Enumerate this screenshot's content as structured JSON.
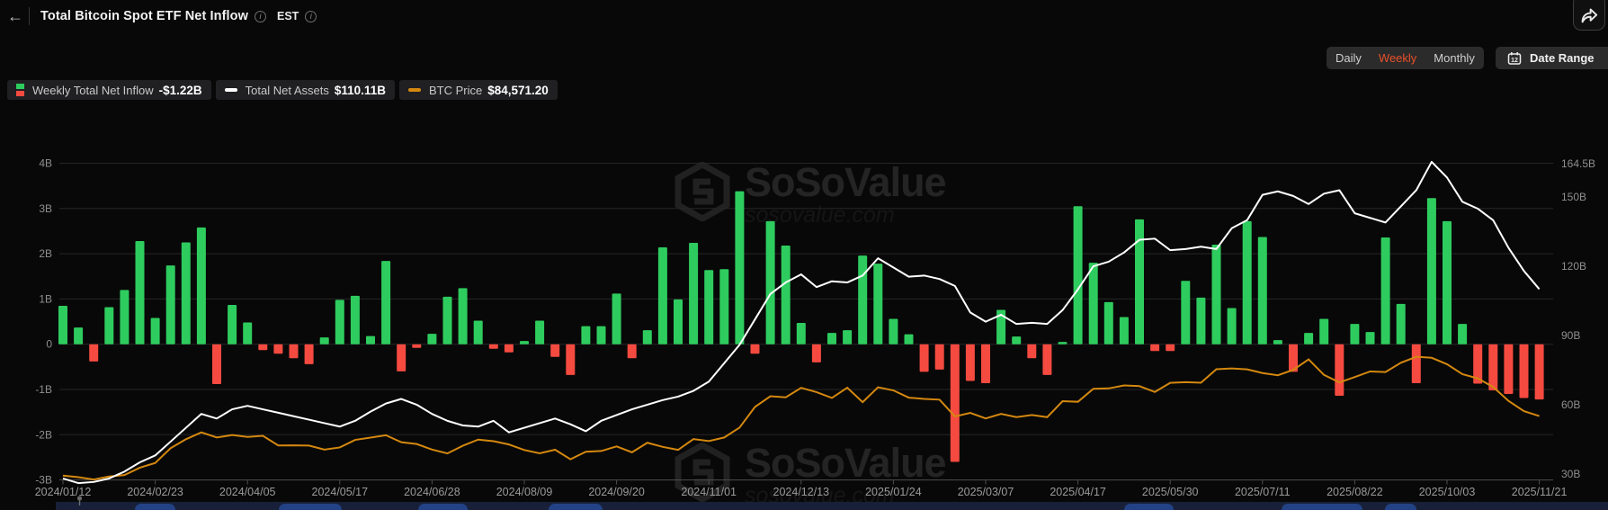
{
  "header": {
    "title": "Total Bitcoin Spot ETF Net Inflow",
    "timezone": "EST",
    "back_glyph": "←",
    "info_glyph": "i"
  },
  "controls": {
    "range_options": [
      "Daily",
      "Weekly",
      "Monthly"
    ],
    "active_range": "Weekly",
    "date_range_label": "Date Range",
    "calendar_day": "12"
  },
  "legend": [
    {
      "label": "Weekly Total Net Inflow",
      "value": "-$1.22B"
    },
    {
      "label": "Total Net Assets",
      "value": "$110.11B"
    },
    {
      "label": "BTC Price",
      "value": "$84,571.20"
    }
  ],
  "watermark": {
    "text": "SoSoValue",
    "subtext": "sosovalue.com"
  },
  "colors": {
    "inflow_positive": "#2ecc5e",
    "inflow_negative": "#f54a40",
    "net_assets_line": "#ffffff",
    "btc_price_line": "#d4880f",
    "active_tab": "#e8502a",
    "grid": "#262626",
    "axis_text": "#8f8f8f"
  },
  "chart_data": {
    "type": "combo",
    "title": "Total Bitcoin Spot ETF Net Inflow",
    "x_tick_labels": [
      "2024/01/12",
      "2024/02/23",
      "2024/04/05",
      "2024/05/17",
      "2024/06/28",
      "2024/08/09",
      "2024/09/20",
      "2024/11/01",
      "2024/12/13",
      "2025/01/24",
      "2025/03/07",
      "2025/04/17",
      "2025/05/30",
      "2025/07/11",
      "2025/08/22",
      "2025/10/03",
      "2025/11/21"
    ],
    "left_axis": {
      "labels": [
        "4B",
        "3B",
        "2B",
        "1B",
        "0",
        "-1B",
        "-2B",
        "-3B"
      ],
      "values": [
        4,
        3,
        2,
        1,
        0,
        -1,
        -2,
        -3
      ],
      "unit": "USD billions",
      "min": -3,
      "max": 4
    },
    "right_axis": {
      "labels": [
        "164.5B",
        "150B",
        "120B",
        "90B",
        "60B",
        "30B"
      ],
      "values": [
        164.5,
        150,
        120,
        90,
        60,
        30
      ],
      "unit": "USD billions"
    },
    "grid": true,
    "legend_position": "top-left",
    "series": [
      {
        "name": "Weekly Total Net Inflow",
        "type": "bar",
        "unit": "$B",
        "axis": "left",
        "values": [
          0.85,
          0.37,
          -0.38,
          0.82,
          1.2,
          2.28,
          0.58,
          1.74,
          2.25,
          2.58,
          -0.88,
          0.87,
          0.48,
          -0.13,
          -0.21,
          -0.31,
          -0.44,
          0.15,
          0.98,
          1.07,
          0.18,
          1.84,
          -0.6,
          -0.08,
          0.23,
          1.05,
          1.24,
          0.52,
          -0.1,
          -0.18,
          0.07,
          0.52,
          -0.28,
          -0.68,
          0.4,
          0.4,
          1.12,
          -0.31,
          0.31,
          2.14,
          0.99,
          2.24,
          1.64,
          1.66,
          3.38,
          -0.21,
          2.72,
          2.18,
          0.47,
          -0.4,
          0.25,
          0.31,
          1.96,
          1.78,
          0.56,
          0.22,
          -0.61,
          -0.56,
          -2.6,
          -0.81,
          -0.86,
          0.76,
          0.17,
          -0.31,
          -0.68,
          0.05,
          3.05,
          1.8,
          0.93,
          0.6,
          2.76,
          -0.15,
          -0.15,
          1.4,
          1.03,
          2.2,
          0.8,
          2.72,
          2.37,
          0.09,
          -0.61,
          0.25,
          0.56,
          -1.14,
          0.45,
          0.27,
          2.36,
          0.89,
          -0.86,
          3.23,
          2.72,
          0.45,
          -0.87,
          -1.02,
          -1.1,
          -1.19,
          -1.22
        ]
      },
      {
        "name": "Total Net Assets",
        "type": "line",
        "unit": "$B",
        "axis": "right",
        "values": [
          28,
          26,
          26.5,
          28,
          31,
          35,
          38,
          44,
          50,
          56,
          54,
          58,
          59.5,
          58,
          56.5,
          55,
          53.5,
          52,
          50.5,
          53,
          57,
          60.5,
          62.5,
          60,
          56,
          53,
          51,
          50.5,
          53,
          48,
          50,
          52,
          54,
          51.5,
          48.5,
          53,
          55.5,
          58,
          60,
          62,
          63.5,
          66,
          70,
          78,
          86,
          97,
          108,
          113,
          116.5,
          111,
          113.5,
          113,
          116,
          123.5,
          119.5,
          115.5,
          116,
          114.5,
          111.5,
          100,
          96,
          99,
          95,
          95.5,
          95,
          101,
          110,
          120,
          122,
          126,
          131.5,
          132,
          127,
          127.5,
          128.5,
          127.5,
          136.5,
          140,
          151,
          152.5,
          150.5,
          147,
          151.5,
          153,
          143,
          141,
          139,
          146,
          153,
          165.3,
          158.5,
          148,
          145,
          140,
          128,
          118,
          110.11
        ]
      },
      {
        "name": "BTC Price",
        "type": "line",
        "unit": "$K",
        "axis": "hidden",
        "values": [
          42.7,
          41.6,
          40,
          42.1,
          43.1,
          48.3,
          51.6,
          62,
          68.3,
          73.1,
          69.5,
          71.2,
          69.9,
          70.7,
          63.9,
          64,
          63.8,
          61,
          62.5,
          67.8,
          69.4,
          71.1,
          66.2,
          64.9,
          61,
          58.3,
          63.7,
          68,
          66.9,
          64.6,
          60.7,
          58.4,
          60.9,
          54.2,
          59.5,
          60,
          63.2,
          59.1,
          65.8,
          62.9,
          60.8,
          68.4,
          67,
          69.5,
          76.5,
          91,
          98.5,
          97.7,
          104.4,
          101.4,
          97.3,
          104.5,
          94.3,
          104.8,
          102.6,
          97.5,
          96.6,
          96.1,
          84.3,
          86.8,
          82.9,
          86.1,
          83.8,
          85.3,
          83.8,
          95,
          94.6,
          103.7,
          104,
          106.1,
          105.6,
          101.5,
          107.9,
          108.4,
          108,
          117.5,
          118,
          117.4,
          114.8,
          113.2,
          117,
          124.4,
          113.5,
          108.2,
          112,
          115.9,
          115.5,
          122,
          126.2,
          125.5,
          121,
          114,
          111,
          105,
          95.2,
          88,
          84.57
        ]
      }
    ]
  }
}
